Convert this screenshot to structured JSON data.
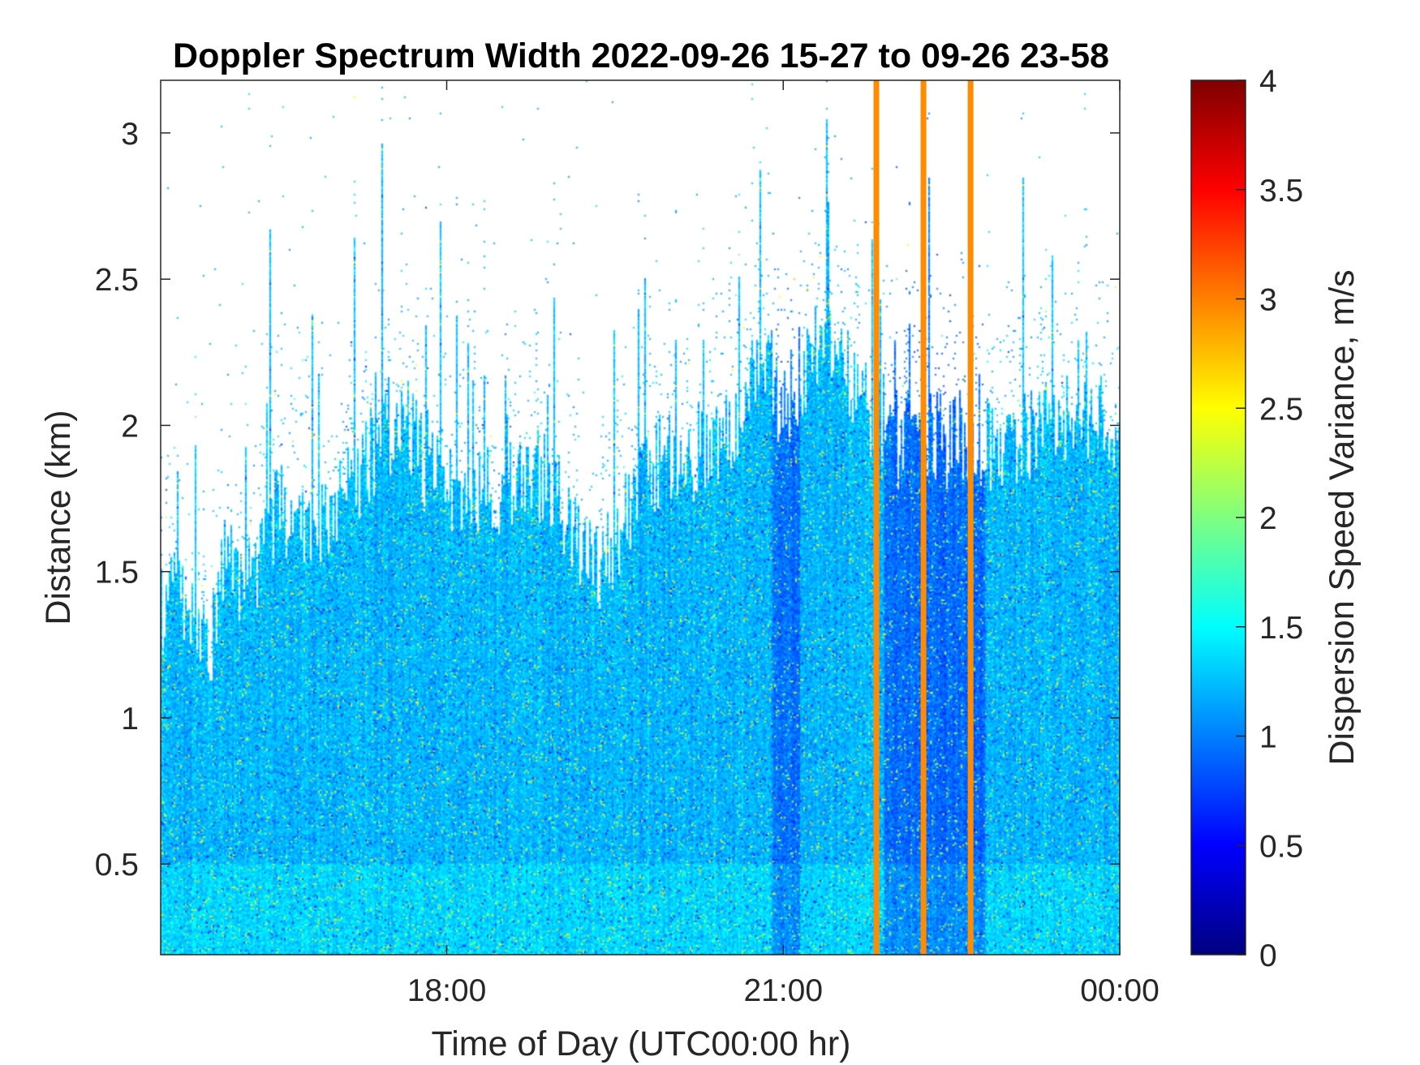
{
  "chart_data": {
    "type": "heatmap",
    "title": "Doppler Spectrum Width 2022-09-26 15-27 to 09-26 23-58",
    "xlabel": "Time of Day (UTC00:00 hr)",
    "ylabel": "Distance (km)",
    "colorbar_label": "Dispersion Speed Variance, m/s",
    "colormap": "jet",
    "x_range": [
      "15:27",
      "00:00"
    ],
    "x_range_hours": [
      15.45,
      24.0
    ],
    "xticks": [
      {
        "value": 18,
        "label": "18:00"
      },
      {
        "value": 21,
        "label": "21:00"
      },
      {
        "value": 24,
        "label": "00:00"
      }
    ],
    "ylim": [
      0.19,
      3.18
    ],
    "yticks": [
      {
        "value": 0.5,
        "label": "0.5"
      },
      {
        "value": 1,
        "label": "1"
      },
      {
        "value": 1.5,
        "label": "1.5"
      },
      {
        "value": 2,
        "label": "2"
      },
      {
        "value": 2.5,
        "label": "2.5"
      },
      {
        "value": 3,
        "label": "3"
      }
    ],
    "clim": [
      0,
      4
    ],
    "cticks": [
      {
        "value": 0,
        "label": "0"
      },
      {
        "value": 0.5,
        "label": "0.5"
      },
      {
        "value": 1,
        "label": "1"
      },
      {
        "value": 1.5,
        "label": "1.5"
      },
      {
        "value": 2,
        "label": "2"
      },
      {
        "value": 2.5,
        "label": "2.5"
      },
      {
        "value": 3,
        "label": "3"
      },
      {
        "value": 3.5,
        "label": "3.5"
      },
      {
        "value": 4,
        "label": "4"
      }
    ],
    "vertical_markers": {
      "times_hours": [
        21.83,
        22.25,
        22.67
      ],
      "color": "#ff8c00"
    },
    "typical_value_range": [
      0.8,
      1.6
    ],
    "cloud_top_profile": {
      "time_hours": [
        15.45,
        15.7,
        15.85,
        16.0,
        16.3,
        16.5,
        16.8,
        17.1,
        17.3,
        17.6,
        17.8,
        18.1,
        18.5,
        18.7,
        18.9,
        19.1,
        19.3,
        19.5,
        19.8,
        20.1,
        20.5,
        20.8,
        21.0,
        21.3,
        21.6,
        21.8,
        22.0,
        22.3,
        22.6,
        22.9,
        23.2,
        23.5,
        23.8,
        24.0
      ],
      "top_km": [
        1.35,
        1.45,
        1.2,
        1.45,
        1.5,
        1.75,
        1.6,
        1.75,
        1.9,
        2.05,
        1.85,
        1.75,
        1.75,
        1.85,
        1.8,
        1.65,
        1.5,
        1.6,
        1.85,
        1.9,
        1.95,
        2.25,
        2.05,
        2.3,
        2.15,
        2.05,
        1.95,
        1.95,
        1.95,
        1.95,
        1.95,
        2.05,
        2.0,
        2.0
      ]
    }
  }
}
